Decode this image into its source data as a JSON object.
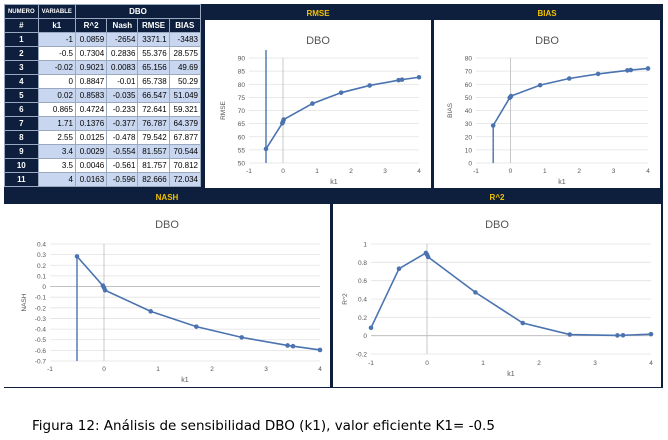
{
  "table": {
    "header_row1": [
      "NUMERO",
      "VARIABLE",
      "DBO"
    ],
    "header_row2": [
      "#",
      "k1",
      "R^2",
      "Nash",
      "RMSE",
      "BIAS"
    ],
    "rows": [
      [
        "1",
        "-1",
        "0.0859",
        "-2654",
        "3371.1",
        "-3483"
      ],
      [
        "2",
        "-0.5",
        "0.7304",
        "0.2836",
        "55.376",
        "28.575"
      ],
      [
        "3",
        "-0.02",
        "0.9021",
        "0.0083",
        "65.156",
        "49.69"
      ],
      [
        "4",
        "0",
        "0.8847",
        "-0.01",
        "65.738",
        "50.29"
      ],
      [
        "5",
        "0.02",
        "0.8583",
        "-0.035",
        "66.547",
        "51.049"
      ],
      [
        "6",
        "0.865",
        "0.4724",
        "-0.233",
        "72.641",
        "59.321"
      ],
      [
        "7",
        "1.71",
        "0.1376",
        "-0.377",
        "76.787",
        "64.379"
      ],
      [
        "8",
        "2.55",
        "0.0125",
        "-0.478",
        "79.542",
        "67.877"
      ],
      [
        "9",
        "3.4",
        "0.0029",
        "-0.554",
        "81.557",
        "70.544"
      ],
      [
        "10",
        "3.5",
        "0.0046",
        "-0.561",
        "81.757",
        "70.812"
      ],
      [
        "11",
        "4",
        "0.0163",
        "-0.596",
        "82.666",
        "72.034"
      ]
    ]
  },
  "panels": {
    "rmse_header": "RMSE",
    "bias_header": "BIAS",
    "nash_header": "NASH",
    "r2_header": "R^2"
  },
  "caption": "Figura 12:  Análisis de sensibilidad DBO (k1), valor eficiente K1= -0.5",
  "colors": {
    "frame": "#0d1f3c",
    "header_text": "#f2c200",
    "series": "#4a73b0",
    "row_fill": "#c9d6ef"
  },
  "chart_data": [
    {
      "id": "rmse",
      "type": "line",
      "title": "DBO",
      "xlabel": "k1",
      "ylabel": "RMSE",
      "x": [
        -0.5,
        -0.02,
        0,
        0.02,
        0.865,
        1.71,
        2.55,
        3.4,
        3.5,
        4
      ],
      "y": [
        55.376,
        65.156,
        65.738,
        66.547,
        72.641,
        76.787,
        79.542,
        81.557,
        81.757,
        82.666
      ],
      "xlim": [
        -1,
        4
      ],
      "ylim": [
        50,
        90
      ],
      "xticks": [
        "-1",
        "0",
        "1",
        "2",
        "3",
        "4"
      ],
      "yticks": [
        "50",
        "55",
        "60",
        "65",
        "70",
        "75",
        "80",
        "85",
        "90"
      ],
      "vline_x": -0.5
    },
    {
      "id": "bias",
      "type": "line",
      "title": "DBO",
      "xlabel": "k1",
      "ylabel": "BIAS",
      "x": [
        -0.5,
        -0.02,
        0,
        0.02,
        0.865,
        1.71,
        2.55,
        3.4,
        3.5,
        4
      ],
      "y": [
        28.575,
        49.69,
        50.29,
        51.049,
        59.321,
        64.379,
        67.877,
        70.544,
        70.812,
        72.034
      ],
      "xlim": [
        -1,
        4
      ],
      "ylim": [
        0,
        80
      ],
      "xticks": [
        "-1",
        "0",
        "1",
        "2",
        "3",
        "4"
      ],
      "yticks": [
        "0",
        "10",
        "20",
        "30",
        "40",
        "50",
        "60",
        "70",
        "80"
      ],
      "vline_x": -0.5
    },
    {
      "id": "nash",
      "type": "line",
      "title": "DBO",
      "xlabel": "k1",
      "ylabel": "NASH",
      "x": [
        -0.5,
        -0.02,
        0,
        0.02,
        0.865,
        1.71,
        2.55,
        3.4,
        3.5,
        4
      ],
      "y": [
        0.2836,
        0.0083,
        -0.01,
        -0.035,
        -0.233,
        -0.377,
        -0.478,
        -0.554,
        -0.561,
        -0.596
      ],
      "xlim": [
        -1,
        4
      ],
      "ylim": [
        -0.7,
        0.4
      ],
      "xticks": [
        "-1",
        "0",
        "1",
        "2",
        "3",
        "4"
      ],
      "yticks": [
        "0.4",
        "0.3",
        "0.2",
        "0.1",
        "0",
        "-0.1",
        "-0.2",
        "-0.3",
        "-0.4",
        "-0.5",
        "-0.6",
        "-0.7"
      ],
      "vline_x": -0.5
    },
    {
      "id": "r2",
      "type": "line",
      "title": "DBO",
      "xlabel": "k1",
      "ylabel": "R^2",
      "x": [
        -1,
        -0.5,
        -0.02,
        0,
        0.02,
        0.865,
        1.71,
        2.55,
        3.4,
        3.5,
        4
      ],
      "y": [
        0.0859,
        0.7304,
        0.9021,
        0.8847,
        0.8583,
        0.4724,
        0.1376,
        0.0125,
        0.0029,
        0.0046,
        0.0163
      ],
      "xlim": [
        -1,
        4
      ],
      "ylim": [
        -0.2,
        1
      ],
      "xticks": [
        "-1",
        "0",
        "1",
        "2",
        "3",
        "4"
      ],
      "yticks": [
        "1",
        "0.8",
        "0.6",
        "0.4",
        "0.2",
        "0",
        "-0.2"
      ]
    }
  ]
}
